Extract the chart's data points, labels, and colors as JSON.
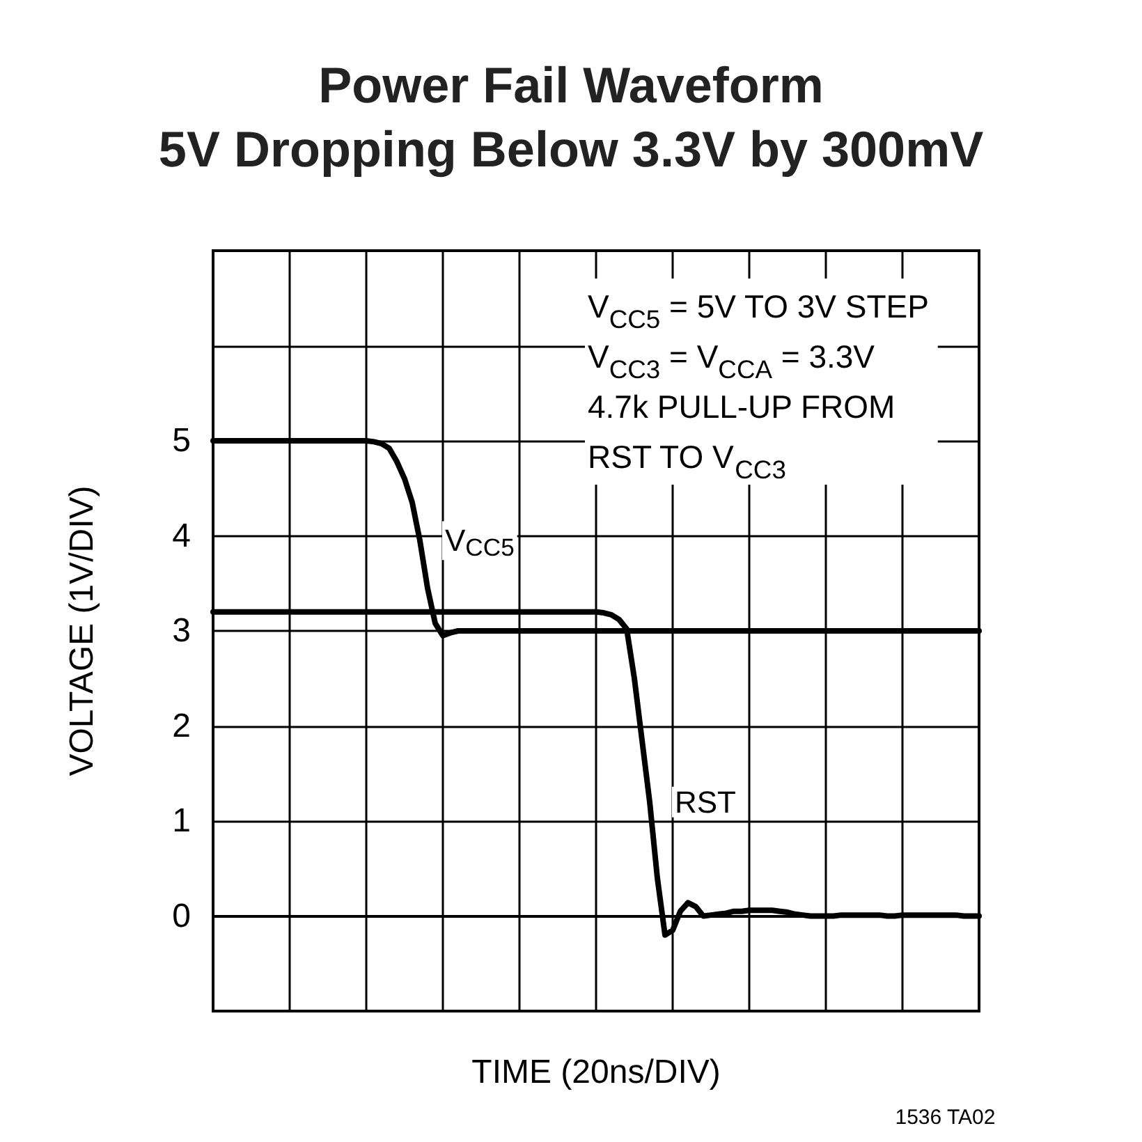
{
  "chart_data": {
    "type": "line",
    "title": "Power Fail Waveform",
    "subtitle": "5V Dropping Below 3.3V by 300mV",
    "xlabel": "TIME (20ns/DIV)",
    "ylabel": "VOLTAGE (1V/DIV)",
    "categories": [
      null,
      null,
      null,
      null,
      null,
      null,
      null,
      null,
      null,
      null,
      null,
      null,
      null,
      null,
      null,
      null,
      null,
      null,
      null,
      null,
      null,
      null,
      null,
      null,
      null,
      null,
      null,
      null,
      null,
      null,
      null,
      null,
      null,
      null,
      null,
      null,
      null,
      null,
      null,
      null,
      null,
      null,
      null,
      null,
      null,
      null,
      null,
      null,
      null,
      null,
      null,
      null,
      null,
      null,
      null,
      null,
      null,
      null,
      null,
      null,
      null,
      null,
      null,
      null,
      null,
      null,
      null,
      null,
      null,
      null,
      null,
      null,
      null,
      null,
      null,
      null,
      null,
      null,
      null,
      null,
      null,
      null,
      null,
      null,
      null,
      null,
      null,
      null,
      null,
      null,
      null,
      null,
      null,
      null,
      null,
      null,
      null,
      null,
      null,
      null,
      null
    ],
    "series": [
      {
        "name": "V$_{CC5}$",
        "color": "#000000",
        "values": [
          5,
          5,
          5,
          5,
          5,
          5,
          5,
          5,
          5,
          5,
          5,
          5,
          5,
          5,
          5,
          5,
          5,
          5,
          5,
          5,
          5,
          4.99,
          4.97,
          4.92,
          4.78,
          4.6,
          4.35,
          3.95,
          3.45,
          3.08,
          2.95,
          2.98,
          3,
          3,
          3,
          3,
          3,
          3,
          3,
          3,
          3,
          3,
          3,
          3,
          3,
          3,
          3,
          3,
          3,
          3,
          3,
          3,
          3,
          3,
          3,
          3,
          3,
          3,
          3,
          3,
          3,
          3,
          3,
          3,
          3,
          3,
          3,
          3,
          3,
          3,
          3,
          3,
          3,
          3,
          3,
          3,
          3,
          3,
          3,
          3,
          3,
          3,
          3,
          3,
          3,
          3,
          3,
          3,
          3,
          3,
          3,
          3,
          3,
          3,
          3,
          3,
          3,
          3,
          3,
          3,
          3
        ]
      },
      {
        "name": "RST",
        "color": "#000000",
        "values": [
          3.2,
          3.2,
          3.2,
          3.2,
          3.2,
          3.2,
          3.2,
          3.2,
          3.2,
          3.2,
          3.2,
          3.2,
          3.2,
          3.2,
          3.2,
          3.2,
          3.2,
          3.2,
          3.2,
          3.2,
          3.2,
          3.2,
          3.2,
          3.2,
          3.2,
          3.2,
          3.2,
          3.2,
          3.2,
          3.2,
          3.2,
          3.2,
          3.2,
          3.2,
          3.2,
          3.2,
          3.2,
          3.2,
          3.2,
          3.2,
          3.2,
          3.2,
          3.2,
          3.2,
          3.2,
          3.2,
          3.2,
          3.2,
          3.2,
          3.2,
          3.2,
          3.19,
          3.17,
          3.12,
          3.02,
          2.5,
          1.85,
          1.2,
          0.4,
          -0.2,
          -0.15,
          0.05,
          0.14,
          0.1,
          0,
          0.01,
          0.02,
          0.03,
          0.05,
          0.05,
          0.06,
          0.06,
          0.06,
          0.06,
          0.05,
          0.04,
          0.02,
          0.01,
          0,
          0,
          0,
          0,
          0.01,
          0.01,
          0.01,
          0.01,
          0.01,
          0.01,
          0,
          0,
          0.01,
          0.01,
          0.01,
          0.01,
          0.01,
          0.01,
          0.01,
          0.01,
          0,
          0,
          0
        ]
      }
    ],
    "ylim": [
      -1,
      7
    ],
    "yticks": [
      {
        "value": -1,
        "label": null
      },
      0,
      1,
      2,
      3,
      4,
      5,
      {
        "value": 6,
        "label": null
      },
      {
        "value": 7,
        "label": null
      }
    ],
    "tick_labels": "y",
    "grid": true,
    "line_style": "solid",
    "marker": "none",
    "annotations": [
      "V$_{CC5}$ = 5V TO 3V STEP\nV$_{CC3}$ = V$_{CCA}$ = 3.3V\n4.7k PULL-UP FROM\nRST TO V$_{CC3}$",
      "1536 TA02"
    ]
  }
}
